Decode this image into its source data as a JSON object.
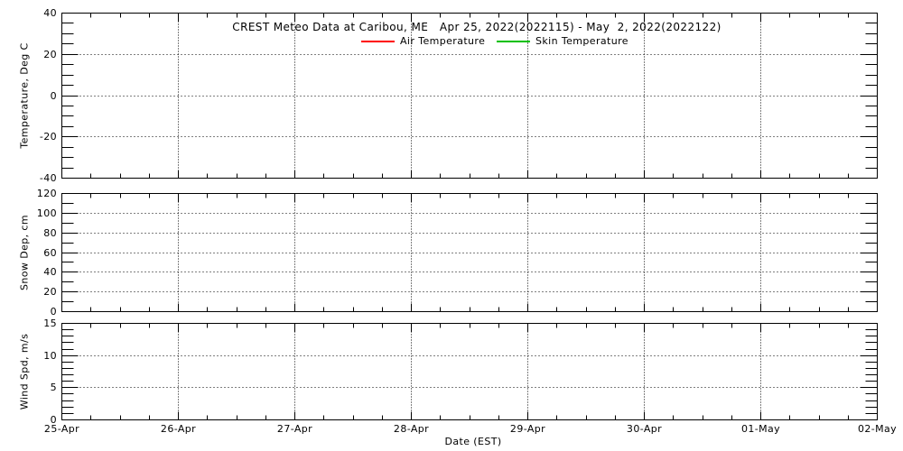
{
  "chart_data": {
    "type": "line",
    "title": "CREST Meteo Data at Caribou, ME   Apr 25, 2022(2022115) - May  2, 2022(2022122)",
    "xlabel": "Date (EST)",
    "x_axis": {
      "tick_labels": [
        "25-Apr",
        "26-Apr",
        "27-Apr",
        "28-Apr",
        "29-Apr",
        "30-Apr",
        "01-May",
        "02-May"
      ],
      "range_days": 7,
      "minor_ticks_per_day": 4,
      "grid": "dotted"
    },
    "legend": {
      "position": "top-inside",
      "entries": [
        {
          "label": "Air Temperature",
          "color": "#ff0000"
        },
        {
          "label": "Skin Temperature",
          "color": "#00c000"
        }
      ]
    },
    "panels": [
      {
        "ylabel": "Temperature, Deg C",
        "ylim": [
          -40,
          40
        ],
        "y_major_ticks": [
          40,
          20,
          0,
          -20,
          -40
        ],
        "y_minor_step": 5,
        "grid": "dotted",
        "series": [
          {
            "name": "Air Temperature",
            "color": "#ff0000",
            "points": []
          },
          {
            "name": "Skin Temperature",
            "color": "#00c000",
            "points": []
          }
        ]
      },
      {
        "ylabel": "Snow Dep, cm",
        "ylim": [
          0,
          120
        ],
        "y_major_ticks": [
          120,
          100,
          80,
          60,
          40,
          20,
          0
        ],
        "y_minor_step": 10,
        "grid": "dotted",
        "series": []
      },
      {
        "ylabel": "Wind Spd, m/s",
        "ylim": [
          0,
          15
        ],
        "y_major_ticks": [
          15,
          10,
          5,
          0
        ],
        "y_minor_step": 1,
        "grid": "dotted",
        "series": []
      }
    ],
    "colors": {
      "background": "#ffffff",
      "axis": "#000000",
      "grid": "#000000",
      "text": "#000000"
    }
  }
}
